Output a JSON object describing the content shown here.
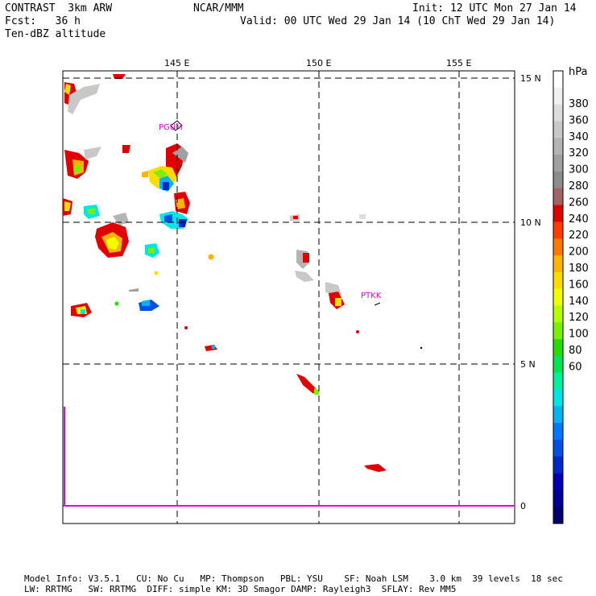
{
  "header": {
    "title": "CONTRAST  3km ARW",
    "org": "NCAR/MMM",
    "init": "Init: 12 UTC Mon 27 Jan 14",
    "fcst": "Fcst:   36 h",
    "valid": "Valid: 00 UTC Wed 29 Jan 14 (10 ChT Wed 29 Jan 14)",
    "field": "Ten-dBZ altitude"
  },
  "map": {
    "lon_labels": [
      "145 E",
      "150 E",
      "155 E"
    ],
    "lat_labels": [
      "15 N",
      "10 N",
      "5 N",
      "0"
    ],
    "stations": [
      "PGUM",
      "PTKK"
    ]
  },
  "colorbar": {
    "unit": "hPa",
    "labels": [
      "380",
      "360",
      "340",
      "320",
      "300",
      "280",
      "260",
      "240",
      "220",
      "200",
      "180",
      "160",
      "140",
      "120",
      "100",
      "80",
      "60"
    ],
    "colors": [
      "#ffffff",
      "#f0f0f0",
      "#dcdcdc",
      "#c8c8c8",
      "#b4b4b4",
      "#a0a0a0",
      "#8c8c8c",
      "#a06464",
      "#e00000",
      "#ff3c00",
      "#ff7800",
      "#ffb400",
      "#ffdc00",
      "#f0ff00",
      "#b4ff00",
      "#78f000",
      "#28dc00",
      "#00e650",
      "#00f0a0",
      "#00e6e6",
      "#00b4f0",
      "#0078ff",
      "#0050e6",
      "#0028c8",
      "#0000b4",
      "#000096",
      "#00006e"
    ]
  },
  "footer": {
    "line1": "Model Info: V3.5.1   CU: No Cu   MP: Thompson   PBL: YSU    SF: Noah LSM    3.0 km  39 levels  18 sec",
    "line2": "LW: RRTMG   SW: RRTMG  DIFF: simple KM: 3D Smagor DAMP: Rayleigh3  SFLAY: Rev MM5"
  }
}
